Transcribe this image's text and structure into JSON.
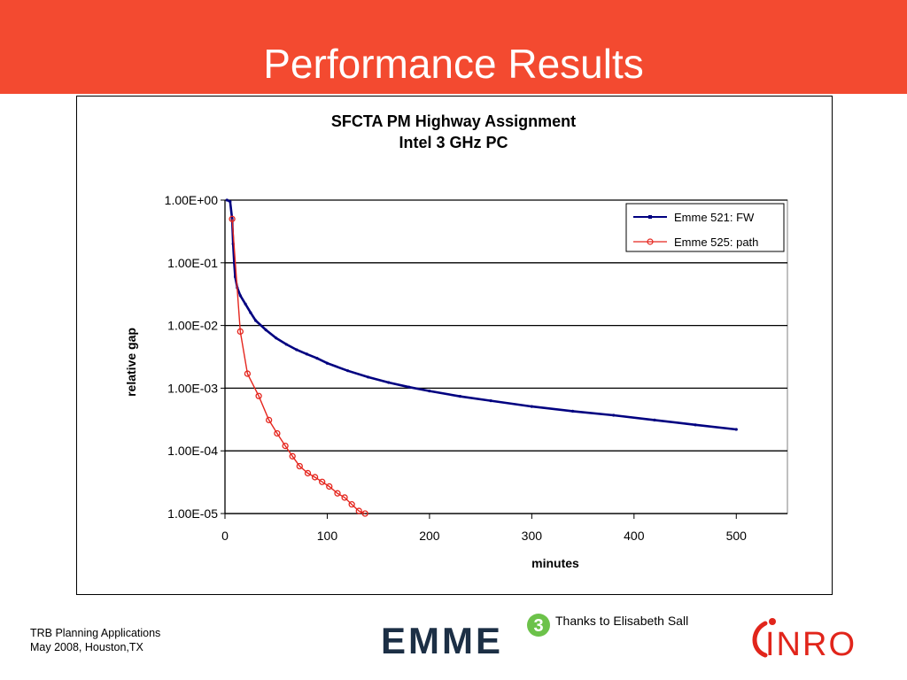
{
  "slide": {
    "title": "Performance Results",
    "header_color": "#f34a30"
  },
  "footer": {
    "line1": "TRB Planning Applications",
    "line2": "May 2008, Houston,TX",
    "thanks": "Thanks to Elisabeth Sall"
  },
  "logos": {
    "emme": {
      "text": "EMME",
      "badge": "3",
      "text_color": "#1c2f45",
      "badge_color": "#6cc24a"
    },
    "inro": {
      "text": "INRO",
      "color": "#e1251b"
    }
  },
  "chart_data": {
    "type": "line",
    "title": "SFCTA PM Highway Assignment",
    "subtitle": "Intel 3 GHz PC",
    "xlabel": "minutes",
    "ylabel": "relative gap",
    "xlim": [
      0,
      550
    ],
    "ylim": [
      1e-05,
      1
    ],
    "log_y": true,
    "x_ticks": [
      0,
      100,
      200,
      300,
      400,
      500
    ],
    "x_tick_labels": [
      "0",
      "100",
      "200",
      "300",
      "400",
      "500"
    ],
    "y_ticks": [
      1,
      0.1,
      0.01,
      0.001,
      0.0001,
      1e-05
    ],
    "y_tick_labels": [
      "1.00E+00",
      "1.00E-01",
      "1.00E-02",
      "1.00E-03",
      "1.00E-04",
      "1.00E-05"
    ],
    "grid": "horizontal",
    "legend_position": "top-right",
    "series": [
      {
        "name": "Emme 521: FW",
        "color": "#000080",
        "marker": "dot",
        "x": [
          2,
          5,
          7,
          8,
          9,
          10,
          12,
          15,
          20,
          25,
          30,
          40,
          50,
          60,
          70,
          80,
          90,
          100,
          120,
          140,
          160,
          180,
          200,
          230,
          260,
          300,
          340,
          380,
          420,
          460,
          500
        ],
        "y": [
          1.0,
          0.95,
          0.5,
          0.2,
          0.1,
          0.06,
          0.04,
          0.03,
          0.022,
          0.016,
          0.012,
          0.0085,
          0.0063,
          0.005,
          0.0041,
          0.0035,
          0.003,
          0.0025,
          0.0019,
          0.0015,
          0.00123,
          0.00104,
          0.0009,
          0.00074,
          0.00063,
          0.00051,
          0.00043,
          0.00037,
          0.00031,
          0.00026,
          0.00022
        ]
      },
      {
        "name": "Emme 525: path",
        "color": "#e5261e",
        "marker": "circle",
        "x": [
          7,
          15,
          22,
          33,
          43,
          51,
          59,
          66,
          73,
          81,
          88,
          95,
          102,
          110,
          117,
          124,
          131,
          137
        ],
        "y": [
          0.5,
          0.008,
          0.0017,
          0.00075,
          0.00031,
          0.00019,
          0.00012,
          8.2e-05,
          5.7e-05,
          4.4e-05,
          3.8e-05,
          3.2e-05,
          2.7e-05,
          2.1e-05,
          1.8e-05,
          1.4e-05,
          1.1e-05,
          1e-05
        ]
      }
    ]
  }
}
